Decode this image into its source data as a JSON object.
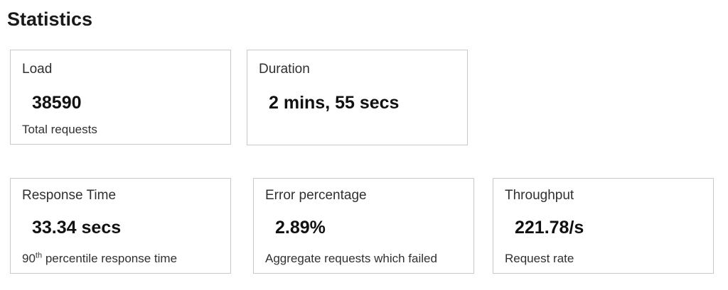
{
  "page": {
    "title": "Statistics"
  },
  "colors": {
    "background": "#ffffff",
    "card_border": "#c9c9c9",
    "label_text": "#303030",
    "value_text": "#111111"
  },
  "cards": [
    {
      "id": "load",
      "label": "Load",
      "value": "38590",
      "sublabel": "Total requests"
    },
    {
      "id": "duration",
      "label": "Duration",
      "value": "2 mins, 55 secs",
      "sublabel": ""
    },
    {
      "id": "response-time",
      "label": "Response Time",
      "value": "33.34 secs",
      "sublabel_prefix": "90",
      "sublabel_sup": "th",
      "sublabel_rest": " percentile response time"
    },
    {
      "id": "error-percentage",
      "label": "Error percentage",
      "value": "2.89%",
      "sublabel": "Aggregate requests which failed"
    },
    {
      "id": "throughput",
      "label": "Throughput",
      "value": "221.78/s",
      "sublabel": "Request rate"
    }
  ]
}
